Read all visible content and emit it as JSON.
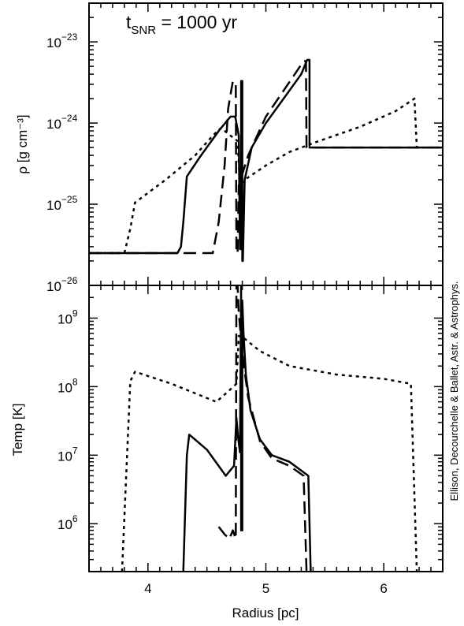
{
  "figure": {
    "annotation": "t",
    "annotation_sub": "SNR",
    "annotation_rest": " = 1000 yr",
    "credit": "Ellison, Decourchelle & Ballet, Astr. & Astrophys."
  },
  "chart_data": [
    {
      "type": "line",
      "panel": "top",
      "ylabel": "ρ [g cm⁻³]",
      "xlabel": "",
      "yscale": "log",
      "xlim": [
        3.5,
        6.5
      ],
      "ylim": [
        1e-26,
        3e-23
      ],
      "ytick_values": [
        1e-26,
        1e-25,
        1e-24,
        1e-23
      ],
      "ytick_exponents": [
        "−26",
        "−25",
        "−24",
        "−23"
      ],
      "xtick_values": [
        4,
        5,
        6
      ],
      "series": [
        {
          "style": "solid",
          "points": [
            [
              3.5,
              2.5e-26
            ],
            [
              4.25,
              2.5e-26
            ],
            [
              4.28,
              3e-26
            ],
            [
              4.3,
              6e-26
            ],
            [
              4.33,
              2.2e-25
            ],
            [
              4.45,
              4e-25
            ],
            [
              4.6,
              8e-25
            ],
            [
              4.7,
              1.2e-24
            ],
            [
              4.74,
              1.2e-24
            ],
            [
              4.77,
              7e-25
            ],
            [
              4.78,
              2.8e-26
            ],
            [
              4.79,
              2.8e-26
            ],
            [
              4.79,
              3.3e-24
            ],
            [
              4.8,
              3.3e-24
            ],
            [
              4.8,
              2e-26
            ],
            [
              4.805,
              2e-26
            ],
            [
              4.82,
              2e-25
            ],
            [
              4.88,
              5e-25
            ],
            [
              5.0,
              1e-24
            ],
            [
              5.15,
              2e-24
            ],
            [
              5.3,
              4e-24
            ],
            [
              5.35,
              6e-24
            ],
            [
              5.37,
              6e-24
            ],
            [
              5.37,
              5e-25
            ],
            [
              6.5,
              5e-25
            ]
          ]
        },
        {
          "style": "dashed",
          "points": [
            [
              3.5,
              2.5e-26
            ],
            [
              4.55,
              2.5e-26
            ],
            [
              4.6,
              6e-26
            ],
            [
              4.65,
              3e-25
            ],
            [
              4.68,
              1.5e-24
            ],
            [
              4.72,
              3.3e-24
            ],
            [
              4.745,
              3e-24
            ],
            [
              4.75,
              2.5e-26
            ],
            [
              4.76,
              2.5e-26
            ],
            [
              4.77,
              1.7e-25
            ],
            [
              4.85,
              4e-25
            ],
            [
              5.0,
              1.2e-24
            ],
            [
              5.2,
              3.2e-24
            ],
            [
              5.32,
              5.8e-24
            ],
            [
              5.34,
              5.8e-24
            ],
            [
              5.345,
              5e-25
            ],
            [
              6.5,
              5e-25
            ]
          ]
        },
        {
          "style": "dotted",
          "points": [
            [
              3.5,
              2.5e-26
            ],
            [
              3.8,
              2.5e-26
            ],
            [
              3.85,
              5e-26
            ],
            [
              3.89,
              1.05e-25
            ],
            [
              4.15,
              2e-25
            ],
            [
              4.4,
              4e-25
            ],
            [
              4.55,
              7e-25
            ],
            [
              4.62,
              8.7e-25
            ],
            [
              4.7,
              7e-25
            ],
            [
              4.76,
              6e-25
            ],
            [
              4.78,
              1.7e-25
            ],
            [
              4.82,
              2e-25
            ],
            [
              5.0,
              3e-25
            ],
            [
              5.2,
              4.4e-25
            ],
            [
              5.45,
              6e-25
            ],
            [
              5.8,
              9e-25
            ],
            [
              6.1,
              1.4e-24
            ],
            [
              6.26,
              2e-24
            ],
            [
              6.28,
              5e-25
            ],
            [
              6.5,
              5e-25
            ]
          ]
        }
      ]
    },
    {
      "type": "line",
      "panel": "bottom",
      "ylabel": "Temp [K]",
      "xlabel": "Radius [pc]",
      "yscale": "log",
      "xlim": [
        3.5,
        6.5
      ],
      "ylim": [
        200000.0,
        3000000000.0
      ],
      "ytick_values": [
        1000000.0,
        10000000.0,
        100000000.0,
        1000000000.0
      ],
      "ytick_exponents": [
        "6",
        "7",
        "8",
        "9"
      ],
      "xtick_values": [
        4,
        5,
        6
      ],
      "xtick_labels": [
        "4",
        "5",
        "6"
      ],
      "series": [
        {
          "style": "solid",
          "points": [
            [
              4.3,
              200000.0
            ],
            [
              4.33,
              10000000.0
            ],
            [
              4.35,
              20000000.0
            ],
            [
              4.5,
              12000000.0
            ],
            [
              4.66,
              5000000.0
            ],
            [
              4.73,
              7000000.0
            ],
            [
              4.75,
              35000000.0
            ],
            [
              4.765,
              18000000.0
            ],
            [
              4.78,
              11000000.0
            ],
            [
              4.79,
              3000000000.0
            ],
            [
              4.79,
              800000.0
            ],
            [
              4.8,
              800000.0
            ],
            [
              4.8,
              1800000000.0
            ],
            [
              4.81,
              600000000.0
            ],
            [
              4.83,
              150000000.0
            ],
            [
              4.87,
              45000000.0
            ],
            [
              4.95,
              17000000.0
            ],
            [
              5.05,
              10000000.0
            ],
            [
              5.2,
              8000000.0
            ],
            [
              5.36,
              5000000.0
            ],
            [
              5.38,
              200000.0
            ]
          ]
        },
        {
          "style": "dashed",
          "points": [
            [
              4.6,
              900000.0
            ],
            [
              4.65,
              700000.0
            ],
            [
              4.69,
              600000.0
            ],
            [
              4.72,
              800000.0
            ],
            [
              4.745,
              600000.0
            ],
            [
              4.75,
              3000000000.0
            ],
            [
              4.76,
              3000000000.0
            ],
            [
              4.77,
              1200000000.0
            ],
            [
              4.8,
              300000000.0
            ],
            [
              4.85,
              70000000.0
            ],
            [
              4.95,
              16000000.0
            ],
            [
              5.05,
              9000000.0
            ],
            [
              5.2,
              7000000.0
            ],
            [
              5.32,
              5000000.0
            ],
            [
              5.345,
              200000.0
            ]
          ]
        },
        {
          "style": "dotted",
          "points": [
            [
              3.78,
              200000.0
            ],
            [
              3.85,
              120000000.0
            ],
            [
              3.89,
              165000000.0
            ],
            [
              4.2,
              110000000.0
            ],
            [
              4.58,
              60000000.0
            ],
            [
              4.68,
              85000000.0
            ],
            [
              4.75,
              110000000.0
            ],
            [
              4.77,
              550000000.0
            ],
            [
              4.82,
              500000000.0
            ],
            [
              4.95,
              330000000.0
            ],
            [
              5.2,
              200000000.0
            ],
            [
              5.6,
              150000000.0
            ],
            [
              6.0,
              130000000.0
            ],
            [
              6.23,
              110000000.0
            ],
            [
              6.28,
              200000.0
            ]
          ]
        }
      ]
    }
  ]
}
